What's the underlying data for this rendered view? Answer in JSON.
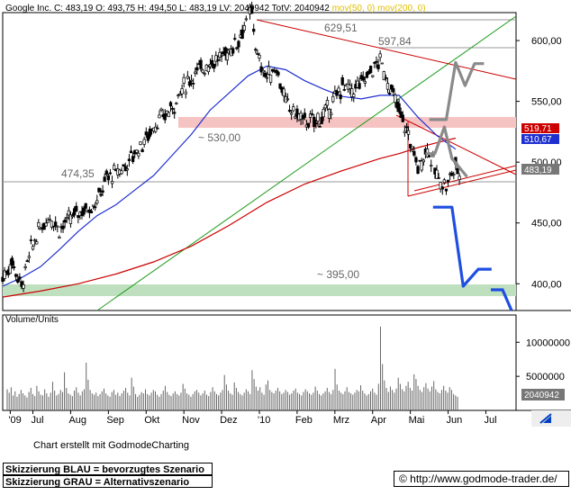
{
  "header": {
    "symbol": "Google Inc.",
    "close": "C: 483,19",
    "open": "O: 493,75",
    "high": "H: 494,50",
    "low": "L: 483,19",
    "last_volume": "LV: 2040942",
    "total_volume": "TotV: 2040942",
    "ma50_label": "mov(50, 0)",
    "ma200_label": "mov(200, 0)"
  },
  "colors": {
    "price": "#000000",
    "ma50": "#1e2fd0",
    "ma200": "#cc0000",
    "trend_green": "#1a9a1a",
    "resistance_zone": "#f6c3c3",
    "support_zone": "#bfe0bf",
    "scenario_blue": "#1f4fe0",
    "scenario_grey": "#8a8a8a",
    "volume_label": "#e0c000"
  },
  "chart_data": [
    {
      "type": "line",
      "subtype": "candlestick",
      "title": "",
      "y_axis_side": "right",
      "ylim": [
        378,
        623
      ],
      "ytick_values": [
        400,
        450,
        500,
        550,
        600
      ],
      "ytick_labels": [
        "400,00",
        "450,00",
        "500,00",
        "550,00",
        "600,00"
      ],
      "x_range": [
        0,
        13.6
      ],
      "x_ticks": [
        {
          "x": 0.2,
          "label": "'09"
        },
        {
          "x": 0.8,
          "label": "Jul"
        },
        {
          "x": 1.8,
          "label": "Aug"
        },
        {
          "x": 2.8,
          "label": "Sep"
        },
        {
          "x": 3.8,
          "label": "Okt"
        },
        {
          "x": 4.8,
          "label": "Nov"
        },
        {
          "x": 5.8,
          "label": "Dez"
        },
        {
          "x": 6.8,
          "label": "'10"
        },
        {
          "x": 7.8,
          "label": "Feb"
        },
        {
          "x": 8.8,
          "label": "Mrz"
        },
        {
          "x": 9.8,
          "label": "Apr"
        },
        {
          "x": 10.8,
          "label": "Mai"
        },
        {
          "x": 11.8,
          "label": "Jun"
        },
        {
          "x": 12.8,
          "label": "Jul"
        }
      ],
      "series": [
        {
          "name": "Google Inc.",
          "x": [
            0.0,
            0.25,
            0.5,
            0.75,
            1.0,
            1.25,
            1.5,
            1.75,
            2.0,
            2.25,
            2.5,
            2.75,
            3.0,
            3.25,
            3.5,
            3.75,
            4.0,
            4.25,
            4.5,
            4.75,
            5.0,
            5.25,
            5.5,
            5.75,
            6.0,
            6.25,
            6.5,
            6.6,
            6.75,
            7.0,
            7.25,
            7.5,
            7.75,
            8.0,
            8.25,
            8.5,
            8.75,
            9.0,
            9.25,
            9.5,
            9.75,
            10.0,
            10.25,
            10.5,
            10.75,
            11.0,
            11.25,
            11.5,
            11.75,
            12.0,
            12.15
          ],
          "values": [
            405,
            418,
            398,
            428,
            446,
            456,
            445,
            452,
            459,
            462,
            468,
            487,
            491,
            497,
            508,
            517,
            530,
            537,
            545,
            560,
            570,
            577,
            582,
            585,
            592,
            601,
            620,
            623,
            585,
            570,
            578,
            548,
            540,
            534,
            533,
            538,
            549,
            563,
            558,
            565,
            575,
            583,
            562,
            542,
            522,
            495,
            512,
            488,
            480,
            498,
            483
          ]
        },
        {
          "name": "mov(50, 0)",
          "x": [
            0,
            0.5,
            1.0,
            1.5,
            2.0,
            2.5,
            3.0,
            3.5,
            4.0,
            4.5,
            5.0,
            5.5,
            6.0,
            6.5,
            7.0,
            7.5,
            8.0,
            8.5,
            9.0,
            9.5,
            10.0,
            10.5,
            11.0,
            11.5,
            12.0
          ],
          "values": [
            398,
            405,
            414,
            428,
            443,
            456,
            465,
            477,
            489,
            506,
            523,
            543,
            557,
            571,
            579,
            576,
            567,
            560,
            554,
            552,
            555,
            555,
            537,
            522,
            510.67
          ]
        },
        {
          "name": "mov(200, 0)",
          "x": [
            0,
            1.0,
            2.0,
            3.0,
            4.0,
            5.0,
            6.0,
            7.0,
            8.0,
            9.0,
            10.0,
            10.5,
            11.0,
            11.5,
            12.0
          ],
          "values": [
            389,
            394,
            400,
            408,
            418,
            431,
            448,
            467,
            482,
            493,
            503,
            507,
            512,
            516,
            519.71
          ]
        }
      ],
      "reference_lines": [
        {
          "type": "horizontal",
          "y": 629.51,
          "label": "629,51"
        },
        {
          "type": "horizontal",
          "y": 597.84,
          "label": "597,84"
        },
        {
          "type": "horizontal",
          "y": 474.35,
          "label": "474,35"
        }
      ],
      "zones": [
        {
          "label": "~ 530,00",
          "y_from": 523,
          "y_to": 531
        },
        {
          "label": "~ 395,00",
          "y_from": 389,
          "y_to": 396
        }
      ],
      "price_markers": [
        {
          "value": 519.71,
          "label": "519,71"
        },
        {
          "value": 510.67,
          "label": "510,67"
        },
        {
          "value": 483.19,
          "label": "483,19"
        }
      ],
      "scenarios": [
        {
          "label": "BLAU",
          "x": [
            11.4,
            11.9,
            12.2,
            12.6,
            12.95
          ],
          "values": [
            463,
            463,
            398,
            412,
            412
          ]
        },
        {
          "label": "GRAU",
          "x": [
            11.3,
            11.75,
            12.0,
            12.25,
            12.5,
            12.75
          ],
          "values": [
            535,
            535,
            582,
            563,
            581,
            581
          ]
        },
        {
          "label": "GRAU-2",
          "x": [
            11.2,
            11.45,
            11.7,
            11.9,
            12.3
          ],
          "values": [
            507,
            507,
            529,
            503,
            488
          ]
        }
      ]
    },
    {
      "type": "bar",
      "title": "Volume/Units",
      "ylim": [
        0,
        14000000
      ],
      "ytick_values": [
        5000000,
        10000000
      ],
      "ytick_labels": [
        "5000000",
        "10000000"
      ],
      "last_value_label": "2040942",
      "values": [
        3.1,
        2.6,
        3.4,
        2.2,
        2.8,
        2.0,
        2.4,
        3.0,
        2.5,
        2.2,
        1.9,
        2.7,
        3.3,
        2.4,
        2.1,
        3.6,
        2.8,
        2.3,
        2.2,
        3.1,
        2.5,
        2.0,
        2.6,
        4.2,
        2.9,
        2.2,
        2.4,
        3.0,
        2.7,
        5.6,
        3.3,
        2.5,
        2.3,
        2.1,
        2.9,
        3.4,
        2.6,
        2.2,
        2.8,
        3.1,
        7.0,
        4.5,
        3.0,
        2.5,
        2.3,
        2.6,
        2.1,
        2.4,
        2.8,
        3.2,
        2.5,
        2.2,
        2.0,
        2.7,
        3.0,
        2.3,
        2.6,
        2.1,
        2.5,
        2.9,
        3.3,
        2.6,
        2.2,
        4.8,
        3.5,
        2.4,
        2.0,
        2.3,
        2.7,
        2.5,
        3.1,
        2.4,
        2.2,
        2.6,
        3.0,
        2.8,
        2.3,
        2.0,
        2.4,
        2.9,
        3.6,
        2.7,
        2.3,
        2.1,
        2.5,
        2.8,
        2.4,
        2.2,
        2.6,
        3.9,
        3.2,
        2.5,
        2.3,
        2.0,
        2.4,
        2.8,
        3.0,
        2.6,
        2.2,
        2.5,
        2.9,
        2.3,
        2.1,
        2.7,
        3.4,
        2.8,
        2.4,
        2.2,
        2.6,
        3.0,
        5.2,
        3.8,
        2.9,
        2.5,
        2.3,
        4.1,
        3.3,
        2.7,
        2.4,
        2.2,
        2.6,
        3.1,
        2.8,
        2.4,
        5.9,
        4.6,
        3.5,
        2.9,
        3.4,
        2.6,
        2.3,
        3.8,
        4.4,
        3.0,
        2.7,
        2.5,
        2.9,
        3.3,
        2.8,
        2.4,
        2.6,
        3.0,
        2.7,
        2.3,
        2.5,
        2.9,
        3.2,
        2.6,
        2.4,
        2.2,
        2.7,
        3.1,
        2.8,
        2.5,
        2.3,
        2.6,
        3.5,
        2.9,
        2.4,
        2.2,
        2.5,
        2.8,
        3.3,
        2.7,
        2.4,
        3.0,
        6.1,
        3.8,
        2.9,
        2.6,
        2.4,
        2.8,
        3.4,
        2.7,
        2.5,
        2.3,
        2.6,
        3.0,
        2.8,
        3.7,
        2.9,
        2.5,
        2.2,
        2.4,
        2.8,
        3.2,
        2.6,
        2.3,
        3.9,
        12.3,
        6.8,
        4.4,
        3.3,
        2.7,
        3.5,
        3.0,
        2.6,
        3.2,
        4.8,
        3.9,
        3.1,
        2.8,
        3.6,
        4.2,
        3.3,
        2.9,
        5.3,
        4.6,
        3.6,
        3.0,
        2.7,
        3.4,
        4.0,
        3.2,
        2.8,
        3.5,
        4.3,
        3.1,
        2.7,
        2.5,
        3.0,
        3.6,
        2.9,
        2.6,
        3.4,
        3.0,
        2.4,
        2.2,
        2.0
      ]
    }
  ],
  "footer": {
    "credit": "Chart erstellt mit GodmodeCharting",
    "legend_blue": "Skizzierung BLAU = bevorzugtes Szenario",
    "legend_grey": "Skizzierung GRAU = Alternativszenario",
    "url": "© http://www.godmode-trader.de/"
  }
}
